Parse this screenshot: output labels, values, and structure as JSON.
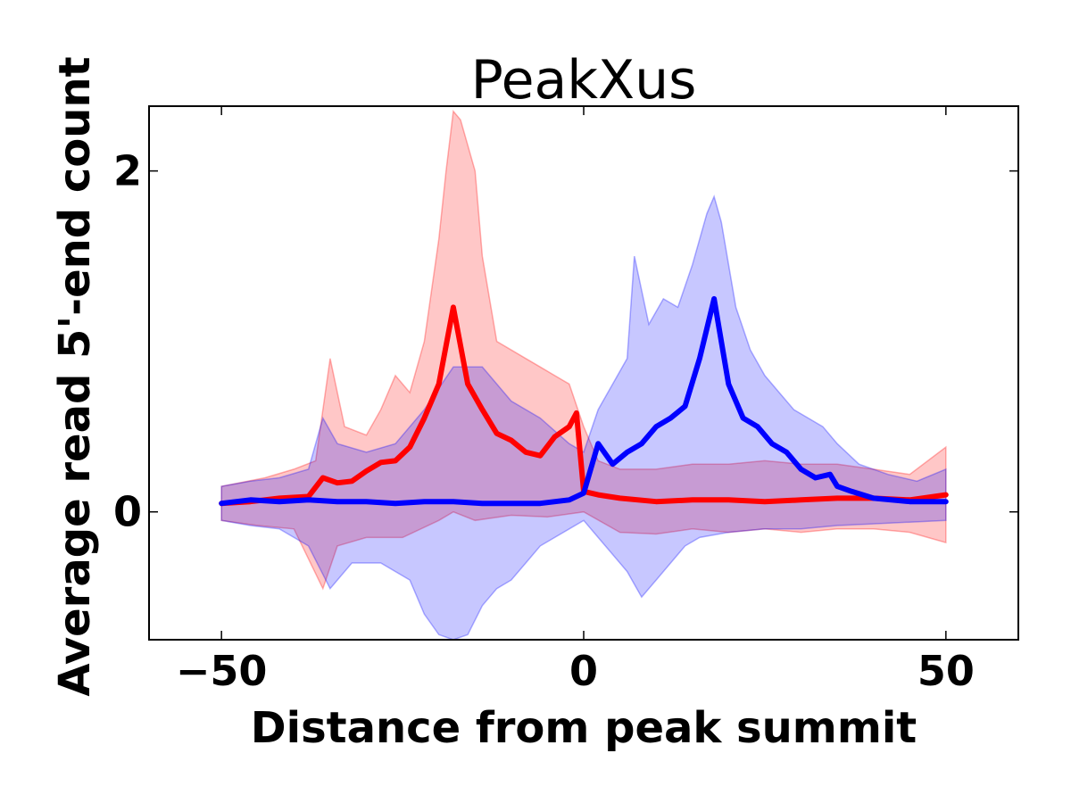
{
  "chart_data": {
    "type": "line",
    "title": "PeakXus",
    "xlabel": "Distance from peak summit",
    "ylabel": "Average read 5'-end count",
    "xlim": [
      -60,
      60
    ],
    "ylim": [
      -0.75,
      2.38
    ],
    "xticks": [
      {
        "value": -50,
        "label": "−50"
      },
      {
        "value": 0,
        "label": "0"
      },
      {
        "value": 50,
        "label": "50"
      }
    ],
    "yticks": [
      {
        "value": 0,
        "label": "0"
      },
      {
        "value": 2,
        "label": "2"
      }
    ],
    "grid": false,
    "series": [
      {
        "color": "#ff0000",
        "band_color": "#ff0000",
        "points": [
          [
            -50,
            0.05
          ],
          [
            -46,
            0.06
          ],
          [
            -42,
            0.08
          ],
          [
            -38,
            0.09
          ],
          [
            -36,
            0.2
          ],
          [
            -34,
            0.17
          ],
          [
            -32,
            0.18
          ],
          [
            -30,
            0.24
          ],
          [
            -28,
            0.29
          ],
          [
            -26,
            0.3
          ],
          [
            -24,
            0.38
          ],
          [
            -22,
            0.55
          ],
          [
            -20,
            0.75
          ],
          [
            -18,
            1.2
          ],
          [
            -16,
            0.75
          ],
          [
            -14,
            0.6
          ],
          [
            -12,
            0.46
          ],
          [
            -10,
            0.42
          ],
          [
            -8,
            0.35
          ],
          [
            -6,
            0.33
          ],
          [
            -4,
            0.44
          ],
          [
            -2,
            0.5
          ],
          [
            -1,
            0.58
          ],
          [
            0,
            0.12
          ],
          [
            2,
            0.1
          ],
          [
            5,
            0.08
          ],
          [
            10,
            0.06
          ],
          [
            15,
            0.07
          ],
          [
            20,
            0.07
          ],
          [
            25,
            0.06
          ],
          [
            30,
            0.07
          ],
          [
            35,
            0.08
          ],
          [
            40,
            0.08
          ],
          [
            45,
            0.07
          ],
          [
            50,
            0.1
          ]
        ],
        "upper": [
          [
            -50,
            0.15
          ],
          [
            -44,
            0.2
          ],
          [
            -40,
            0.25
          ],
          [
            -37,
            0.3
          ],
          [
            -35,
            0.9
          ],
          [
            -33,
            0.5
          ],
          [
            -30,
            0.45
          ],
          [
            -28,
            0.6
          ],
          [
            -26,
            0.8
          ],
          [
            -24,
            0.7
          ],
          [
            -22,
            1.0
          ],
          [
            -20,
            1.6
          ],
          [
            -19,
            2.0
          ],
          [
            -18,
            2.35
          ],
          [
            -17,
            2.3
          ],
          [
            -15,
            2.0
          ],
          [
            -14,
            1.5
          ],
          [
            -12,
            1.0
          ],
          [
            -10,
            0.95
          ],
          [
            -8,
            0.9
          ],
          [
            -6,
            0.85
          ],
          [
            -4,
            0.8
          ],
          [
            -2,
            0.75
          ],
          [
            0,
            0.5
          ],
          [
            2,
            0.3
          ],
          [
            5,
            0.25
          ],
          [
            10,
            0.25
          ],
          [
            15,
            0.28
          ],
          [
            20,
            0.28
          ],
          [
            25,
            0.3
          ],
          [
            30,
            0.28
          ],
          [
            35,
            0.28
          ],
          [
            40,
            0.25
          ],
          [
            45,
            0.22
          ],
          [
            50,
            0.38
          ]
        ],
        "lower": [
          [
            -50,
            -0.05
          ],
          [
            -45,
            -0.08
          ],
          [
            -40,
            -0.1
          ],
          [
            -36,
            -0.45
          ],
          [
            -34,
            -0.2
          ],
          [
            -30,
            -0.15
          ],
          [
            -25,
            -0.15
          ],
          [
            -20,
            -0.05
          ],
          [
            -18,
            0.0
          ],
          [
            -15,
            -0.05
          ],
          [
            -10,
            -0.02
          ],
          [
            -5,
            -0.03
          ],
          [
            0,
            0.0
          ],
          [
            5,
            -0.12
          ],
          [
            10,
            -0.13
          ],
          [
            15,
            -0.1
          ],
          [
            20,
            -0.12
          ],
          [
            25,
            -0.1
          ],
          [
            30,
            -0.12
          ],
          [
            35,
            -0.1
          ],
          [
            40,
            -0.1
          ],
          [
            45,
            -0.12
          ],
          [
            50,
            -0.18
          ]
        ]
      },
      {
        "color": "#0000ff",
        "band_color": "#0000ff",
        "points": [
          [
            -50,
            0.05
          ],
          [
            -46,
            0.07
          ],
          [
            -42,
            0.06
          ],
          [
            -38,
            0.07
          ],
          [
            -34,
            0.06
          ],
          [
            -30,
            0.06
          ],
          [
            -26,
            0.05
          ],
          [
            -22,
            0.06
          ],
          [
            -18,
            0.06
          ],
          [
            -14,
            0.05
          ],
          [
            -10,
            0.05
          ],
          [
            -6,
            0.05
          ],
          [
            -2,
            0.07
          ],
          [
            0,
            0.11
          ],
          [
            2,
            0.4
          ],
          [
            4,
            0.28
          ],
          [
            6,
            0.35
          ],
          [
            8,
            0.4
          ],
          [
            10,
            0.5
          ],
          [
            12,
            0.55
          ],
          [
            14,
            0.62
          ],
          [
            16,
            0.9
          ],
          [
            18,
            1.25
          ],
          [
            19,
            1.0
          ],
          [
            20,
            0.75
          ],
          [
            22,
            0.55
          ],
          [
            24,
            0.5
          ],
          [
            26,
            0.4
          ],
          [
            28,
            0.35
          ],
          [
            30,
            0.25
          ],
          [
            32,
            0.2
          ],
          [
            34,
            0.22
          ],
          [
            35,
            0.15
          ],
          [
            37,
            0.12
          ],
          [
            40,
            0.08
          ],
          [
            45,
            0.06
          ],
          [
            50,
            0.06
          ]
        ],
        "upper": [
          [
            -50,
            0.15
          ],
          [
            -46,
            0.18
          ],
          [
            -42,
            0.2
          ],
          [
            -38,
            0.25
          ],
          [
            -36,
            0.55
          ],
          [
            -34,
            0.4
          ],
          [
            -30,
            0.35
          ],
          [
            -26,
            0.4
          ],
          [
            -22,
            0.6
          ],
          [
            -18,
            0.85
          ],
          [
            -14,
            0.85
          ],
          [
            -10,
            0.65
          ],
          [
            -6,
            0.55
          ],
          [
            -2,
            0.4
          ],
          [
            0,
            0.35
          ],
          [
            2,
            0.6
          ],
          [
            4,
            0.75
          ],
          [
            6,
            0.9
          ],
          [
            7,
            1.5
          ],
          [
            9,
            1.1
          ],
          [
            11,
            1.25
          ],
          [
            13,
            1.2
          ],
          [
            15,
            1.45
          ],
          [
            17,
            1.75
          ],
          [
            18,
            1.85
          ],
          [
            19,
            1.7
          ],
          [
            21,
            1.2
          ],
          [
            23,
            0.95
          ],
          [
            25,
            0.8
          ],
          [
            27,
            0.7
          ],
          [
            29,
            0.6
          ],
          [
            31,
            0.55
          ],
          [
            33,
            0.5
          ],
          [
            35,
            0.4
          ],
          [
            38,
            0.28
          ],
          [
            42,
            0.22
          ],
          [
            46,
            0.18
          ],
          [
            50,
            0.25
          ]
        ],
        "lower": [
          [
            -50,
            -0.05
          ],
          [
            -46,
            -0.08
          ],
          [
            -42,
            -0.1
          ],
          [
            -38,
            -0.2
          ],
          [
            -35,
            -0.45
          ],
          [
            -32,
            -0.3
          ],
          [
            -28,
            -0.3
          ],
          [
            -24,
            -0.4
          ],
          [
            -22,
            -0.6
          ],
          [
            -20,
            -0.72
          ],
          [
            -18,
            -0.75
          ],
          [
            -16,
            -0.72
          ],
          [
            -14,
            -0.55
          ],
          [
            -12,
            -0.45
          ],
          [
            -10,
            -0.4
          ],
          [
            -8,
            -0.3
          ],
          [
            -6,
            -0.2
          ],
          [
            -4,
            -0.15
          ],
          [
            -2,
            -0.1
          ],
          [
            0,
            -0.05
          ],
          [
            2,
            -0.15
          ],
          [
            4,
            -0.25
          ],
          [
            6,
            -0.35
          ],
          [
            8,
            -0.5
          ],
          [
            10,
            -0.4
          ],
          [
            12,
            -0.3
          ],
          [
            14,
            -0.2
          ],
          [
            16,
            -0.15
          ],
          [
            20,
            -0.12
          ],
          [
            25,
            -0.1
          ],
          [
            30,
            -0.1
          ],
          [
            35,
            -0.08
          ],
          [
            40,
            -0.07
          ],
          [
            45,
            -0.06
          ],
          [
            50,
            -0.05
          ]
        ]
      }
    ]
  }
}
